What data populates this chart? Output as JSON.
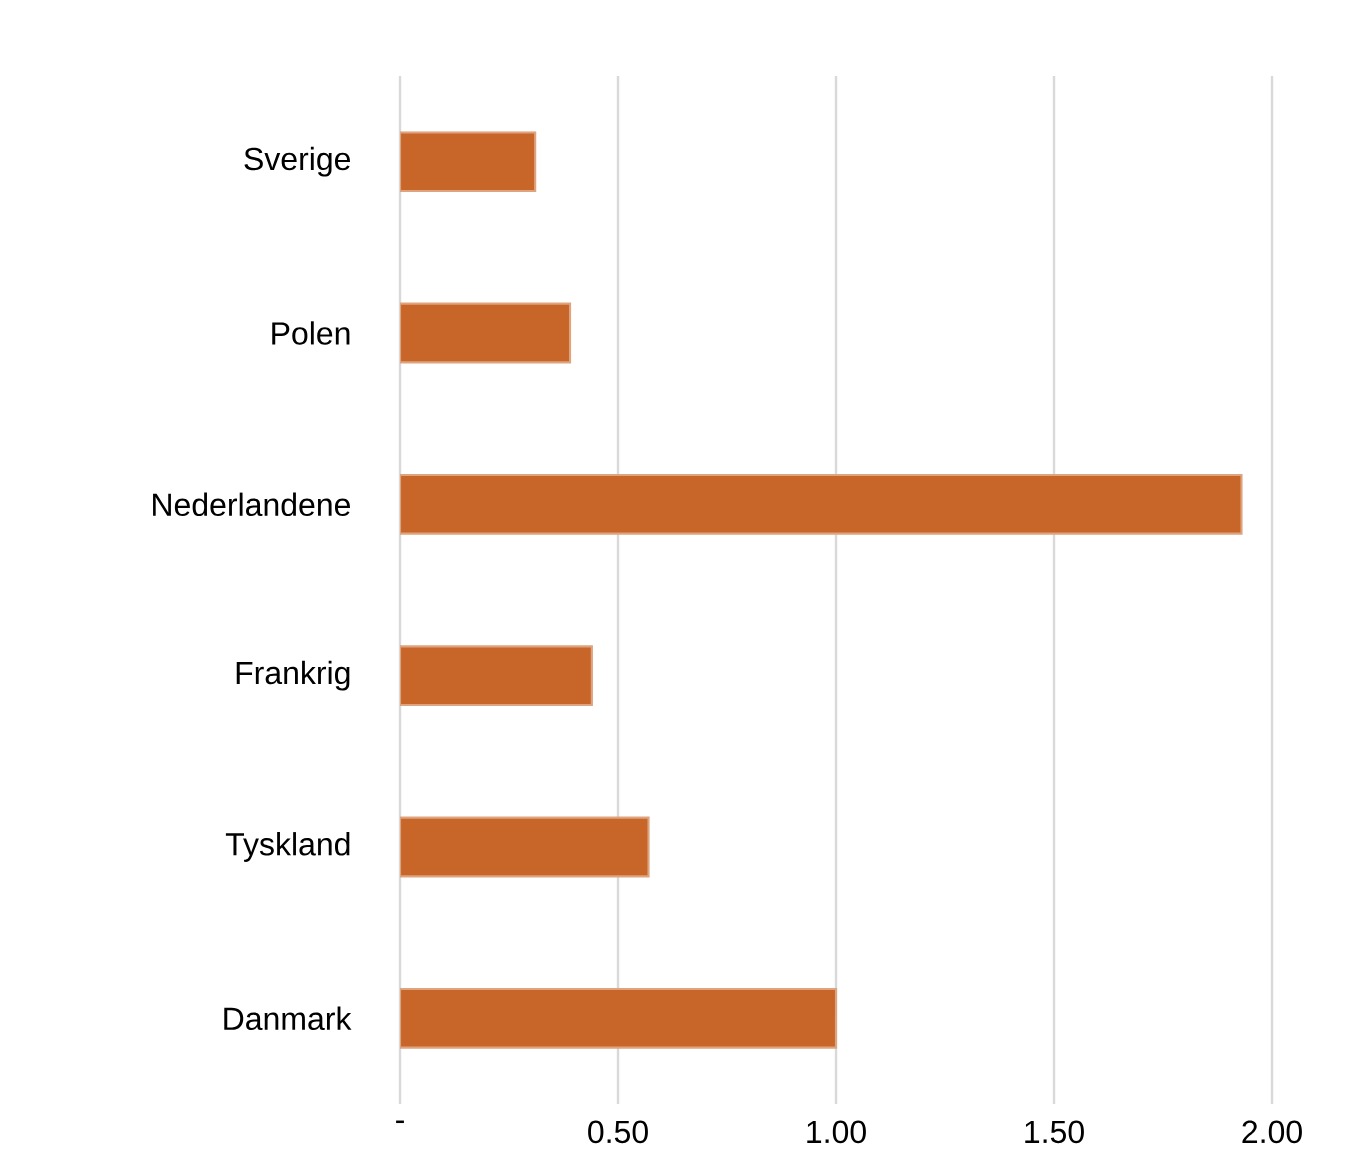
{
  "chart_data": {
    "type": "bar",
    "orientation": "horizontal",
    "categories": [
      "Sverige",
      "Polen",
      "Nederlandene",
      "Frankrig",
      "Tyskland",
      "Danmark"
    ],
    "values": [
      0.31,
      0.39,
      1.93,
      0.44,
      0.57,
      1.0
    ],
    "color": "#c8662a",
    "xlim": [
      0,
      2.0
    ],
    "xticks": [
      {
        "value": 0,
        "label": "-"
      },
      {
        "value": 0.5,
        "label": "0.50"
      },
      {
        "value": 1.0,
        "label": "1.00"
      },
      {
        "value": 1.5,
        "label": "1.50"
      },
      {
        "value": 2.0,
        "label": "2.00"
      }
    ],
    "grid": "x"
  }
}
